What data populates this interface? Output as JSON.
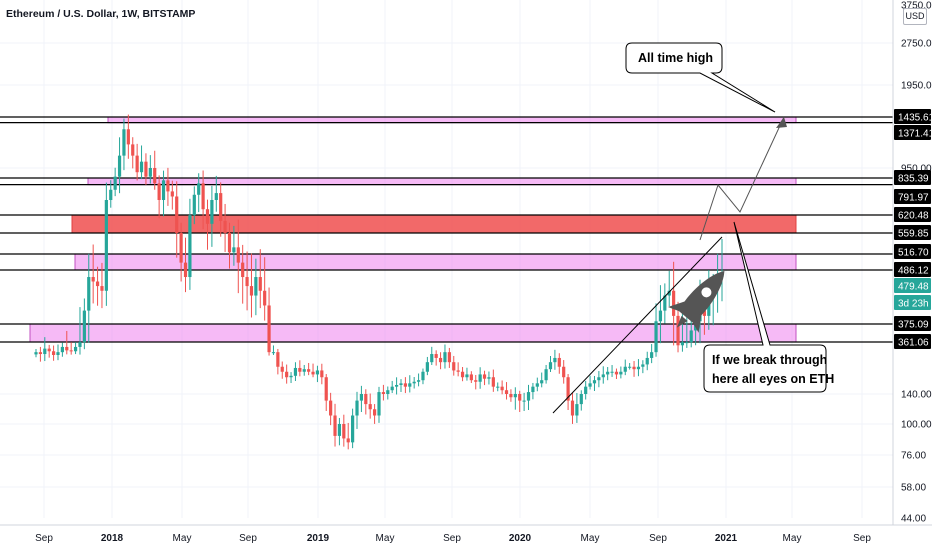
{
  "header": {
    "symbol_title": "Ethereum / U.S. Dollar, 1W, BITSTAMP"
  },
  "axis": {
    "currency_button": "USD"
  },
  "colors": {
    "up": "#26a69a",
    "down": "#ef5350",
    "magenta_zone": "#ee82ee",
    "red_zone": "#f04f4f",
    "last_price_tag": "#26a69a",
    "text": "#131722"
  },
  "chart_data": {
    "type": "candlestick",
    "title": "Ethereum / U.S. Dollar, 1W, BITSTAMP",
    "y_scale": "log",
    "ylim": [
      44,
      3750
    ],
    "y_ticks": [
      "3750.00",
      "2750.00",
      "1950.00",
      "1435.61",
      "1371.41",
      "950.00",
      "835.39",
      "791.97",
      "620.48",
      "559.85",
      "516.70",
      "486.12",
      "479.48",
      "375.09",
      "361.06",
      "140.00",
      "100.00",
      "76.00",
      "58.00",
      "44.00"
    ],
    "x_ticks": [
      "Sep",
      "2018",
      "May",
      "Sep",
      "2019",
      "May",
      "Sep",
      "2020",
      "May",
      "Sep",
      "2021",
      "May",
      "Sep"
    ],
    "price_tags": [
      {
        "label": "1435.61",
        "value": 1435.61,
        "kind": "line"
      },
      {
        "label": "1371.41",
        "value": 1371.41,
        "kind": "line"
      },
      {
        "label": "835.39",
        "value": 835.39,
        "kind": "line"
      },
      {
        "label": "791.97",
        "value": 791.97,
        "kind": "line"
      },
      {
        "label": "620.48",
        "value": 620.48,
        "kind": "line"
      },
      {
        "label": "559.85",
        "value": 559.85,
        "kind": "line"
      },
      {
        "label": "516.70",
        "value": 516.7,
        "kind": "line"
      },
      {
        "label": "486.12",
        "value": 486.12,
        "kind": "line"
      },
      {
        "label": "479.48",
        "value": 479.48,
        "kind": "last"
      },
      {
        "label": "3d 23h",
        "value": 420,
        "kind": "countdown"
      },
      {
        "label": "375.09",
        "value": 375.09,
        "kind": "line"
      },
      {
        "label": "361.06",
        "value": 361.06,
        "kind": "line"
      }
    ],
    "zones": [
      {
        "label": "1371.41–1435.61",
        "low": 1371.41,
        "high": 1435.61,
        "color": "#ee82ee"
      },
      {
        "label": "791.97–835.39",
        "low": 791.97,
        "high": 835.39,
        "color": "#ee82ee"
      },
      {
        "label": "559.85–620.48",
        "low": 559.85,
        "high": 620.48,
        "color": "#f04f4f"
      },
      {
        "label": "486.12–516.70",
        "low": 486.12,
        "high": 516.7,
        "color": "#ee82ee"
      },
      {
        "label": "361.06–375.09",
        "low": 361.06,
        "high": 375.09,
        "color": "#ee82ee"
      }
    ],
    "last_price": 479.48,
    "candles_close": [
      300,
      290,
      320,
      305,
      285,
      300,
      330,
      310,
      305,
      330,
      360,
      400,
      470,
      460,
      450,
      440,
      700,
      760,
      850,
      1050,
      1300,
      1150,
      1050,
      900,
      1000,
      850,
      950,
      800,
      700,
      820,
      750,
      720,
      560,
      500,
      470,
      620,
      730,
      800,
      650,
      590,
      700,
      740,
      600,
      560,
      520,
      530,
      500,
      470,
      450,
      430,
      470,
      440,
      410,
      300,
      300,
      230,
      210,
      190,
      195,
      225,
      210,
      220,
      210,
      200,
      215,
      190,
      130,
      110,
      90,
      100,
      88,
      85,
      110,
      130,
      140,
      125,
      118,
      110,
      145,
      140,
      150,
      160,
      165,
      170,
      160,
      170,
      175,
      180,
      210,
      250,
      290,
      270,
      250,
      300,
      250,
      215,
      210,
      190,
      200,
      180,
      175,
      200,
      185,
      190,
      160,
      160,
      150,
      140,
      135,
      140,
      130,
      130,
      145,
      160,
      170,
      180,
      220,
      250,
      270,
      230,
      190,
      130,
      110,
      125,
      140,
      160,
      170,
      180,
      190,
      200,
      210,
      210,
      200,
      210,
      230,
      230,
      220,
      230,
      240,
      270,
      300,
      380,
      400,
      430,
      440,
      390,
      340,
      360,
      360,
      370,
      380,
      400,
      390,
      430,
      450,
      470,
      480
    ],
    "annotations": [
      {
        "text": "All time high",
        "type": "callout"
      },
      {
        "text": "If we break through here all eyes on ETH",
        "type": "callout"
      }
    ]
  },
  "annotations": {
    "ath_label": "All time high",
    "breakout_line1": "If we break through",
    "breakout_line2": "here all eyes on ETH"
  }
}
